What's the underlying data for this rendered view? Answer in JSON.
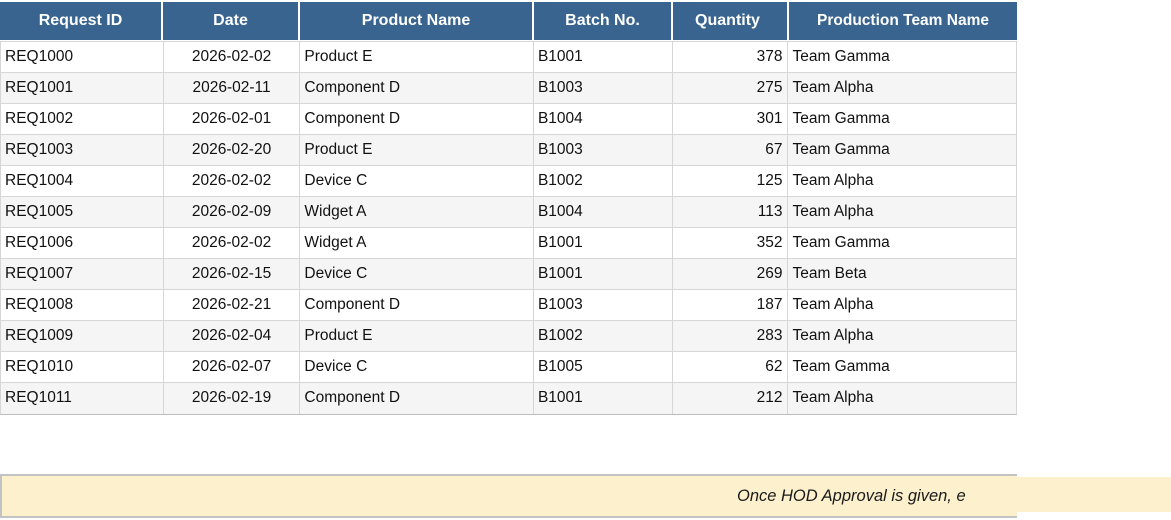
{
  "table": {
    "columns": [
      "Request ID",
      "Date",
      "Product Name",
      "Batch No.",
      "Quantity",
      "Production Team Name"
    ],
    "rows": [
      [
        "REQ1000",
        "2026-02-02",
        "Product E",
        "B1001",
        "378",
        "Team Gamma"
      ],
      [
        "REQ1001",
        "2026-02-11",
        "Component D",
        "B1003",
        "275",
        "Team Alpha"
      ],
      [
        "REQ1002",
        "2026-02-01",
        "Component D",
        "B1004",
        "301",
        "Team Gamma"
      ],
      [
        "REQ1003",
        "2026-02-20",
        "Product E",
        "B1003",
        "67",
        "Team Gamma"
      ],
      [
        "REQ1004",
        "2026-02-02",
        "Device C",
        "B1002",
        "125",
        "Team Alpha"
      ],
      [
        "REQ1005",
        "2026-02-09",
        "Widget A",
        "B1004",
        "113",
        "Team Alpha"
      ],
      [
        "REQ1006",
        "2026-02-02",
        "Widget A",
        "B1001",
        "352",
        "Team Gamma"
      ],
      [
        "REQ1007",
        "2026-02-15",
        "Device C",
        "B1001",
        "269",
        "Team Beta"
      ],
      [
        "REQ1008",
        "2026-02-21",
        "Component D",
        "B1003",
        "187",
        "Team Alpha"
      ],
      [
        "REQ1009",
        "2026-02-04",
        "Product E",
        "B1002",
        "283",
        "Team Alpha"
      ],
      [
        "REQ1010",
        "2026-02-07",
        "Device C",
        "B1005",
        "62",
        "Team Gamma"
      ],
      [
        "REQ1011",
        "2026-02-19",
        "Component D",
        "B1001",
        "212",
        "Team Alpha"
      ]
    ],
    "column_keys": [
      "request-id",
      "date",
      "product-name",
      "batch-no",
      "quantity",
      "production-team-name"
    ]
  },
  "banner": {
    "text": "Once HOD Approval is given, e"
  },
  "colors": {
    "header_bg": "#38648F",
    "banner_bg": "#FCF0CD",
    "zebra_row": "#F5F5F5",
    "gridline": "#D6D6D6"
  }
}
